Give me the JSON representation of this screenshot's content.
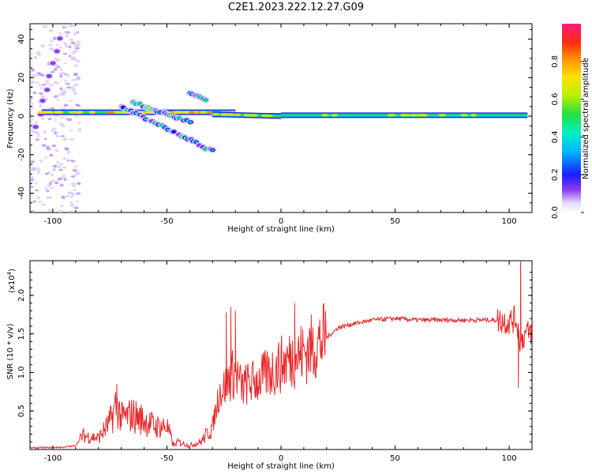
{
  "title": "C2E1.2023.222.12.27.G09",
  "chart_data": [
    {
      "type": "heatmap",
      "xlabel": "Height of straight line (km)",
      "ylabel": "Frequency (Hz)",
      "xlim": [
        -110,
        110
      ],
      "ylim": [
        -50,
        48
      ],
      "xticks": [
        -100,
        -50,
        0,
        50,
        100
      ],
      "yticks": [
        -40,
        -20,
        0,
        20,
        40
      ],
      "colorbar": {
        "label": "Normalized spectral amplitude",
        "range": [
          0,
          1
        ],
        "ticks": [
          "0.0",
          "0.2",
          "0.4",
          "0.6",
          "0.8"
        ]
      },
      "features": [
        {
          "x": [
            -107,
            -97
          ],
          "y": [
            -5,
            40
          ],
          "amp": 0.25,
          "kind": "streak"
        },
        {
          "x": [
            -105,
            -20
          ],
          "y": [
            2,
            2
          ],
          "amp": 0.7,
          "kind": "band"
        },
        {
          "x": [
            -70,
            -30
          ],
          "y": [
            5,
            -18
          ],
          "amp": 0.5,
          "kind": "streak"
        },
        {
          "x": [
            -40,
            -33
          ],
          "y": [
            12,
            8
          ],
          "amp": 0.5,
          "kind": "streak"
        },
        {
          "x": [
            -65,
            -40
          ],
          "y": [
            7,
            -3
          ],
          "amp": 0.55,
          "kind": "streak"
        },
        {
          "x": [
            -30,
            0
          ],
          "y": [
            1,
            0
          ],
          "amp": 0.6,
          "kind": "band"
        },
        {
          "x": [
            0,
            108
          ],
          "y": [
            0.5,
            0.5
          ],
          "amp": 0.55,
          "kind": "band"
        }
      ]
    },
    {
      "type": "line",
      "xlabel": "Height of straight line (km)",
      "ylabel": "SNR (10 * v/v)",
      "scale_label": "(x10",
      "scale_exp": "4",
      "scale_close": ")",
      "xlim": [
        -110,
        110
      ],
      "ylim": [
        0,
        2.45
      ],
      "xticks": [
        -100,
        -50,
        0,
        50,
        100
      ],
      "yticks": [
        "0.5",
        "1.0",
        "1.5",
        "2.0"
      ],
      "series": [
        {
          "color": "#e8282a",
          "x": [
            -110,
            -95,
            -90,
            -87,
            -80,
            -75,
            -72,
            -70,
            -65,
            -60,
            -55,
            -50,
            -47,
            -45,
            -40,
            -35,
            -30,
            -27,
            -25,
            -22,
            -20,
            -17,
            -15,
            -10,
            -5,
            0,
            5,
            10,
            15,
            20,
            25,
            30,
            40,
            50,
            60,
            70,
            80,
            90,
            95,
            100,
            103,
            105,
            107,
            110
          ],
          "y": [
            0.02,
            0.03,
            0.05,
            0.18,
            0.15,
            0.35,
            0.6,
            0.4,
            0.45,
            0.38,
            0.3,
            0.3,
            0.05,
            0.1,
            0.05,
            0.1,
            0.3,
            0.75,
            0.8,
            0.95,
            1.0,
            0.8,
            0.85,
            0.9,
            1.0,
            1.1,
            1.2,
            1.25,
            1.35,
            1.45,
            1.58,
            1.62,
            1.68,
            1.7,
            1.68,
            1.68,
            1.68,
            1.68,
            1.68,
            1.66,
            1.7,
            1.4,
            1.5,
            1.53
          ]
        }
      ]
    }
  ]
}
